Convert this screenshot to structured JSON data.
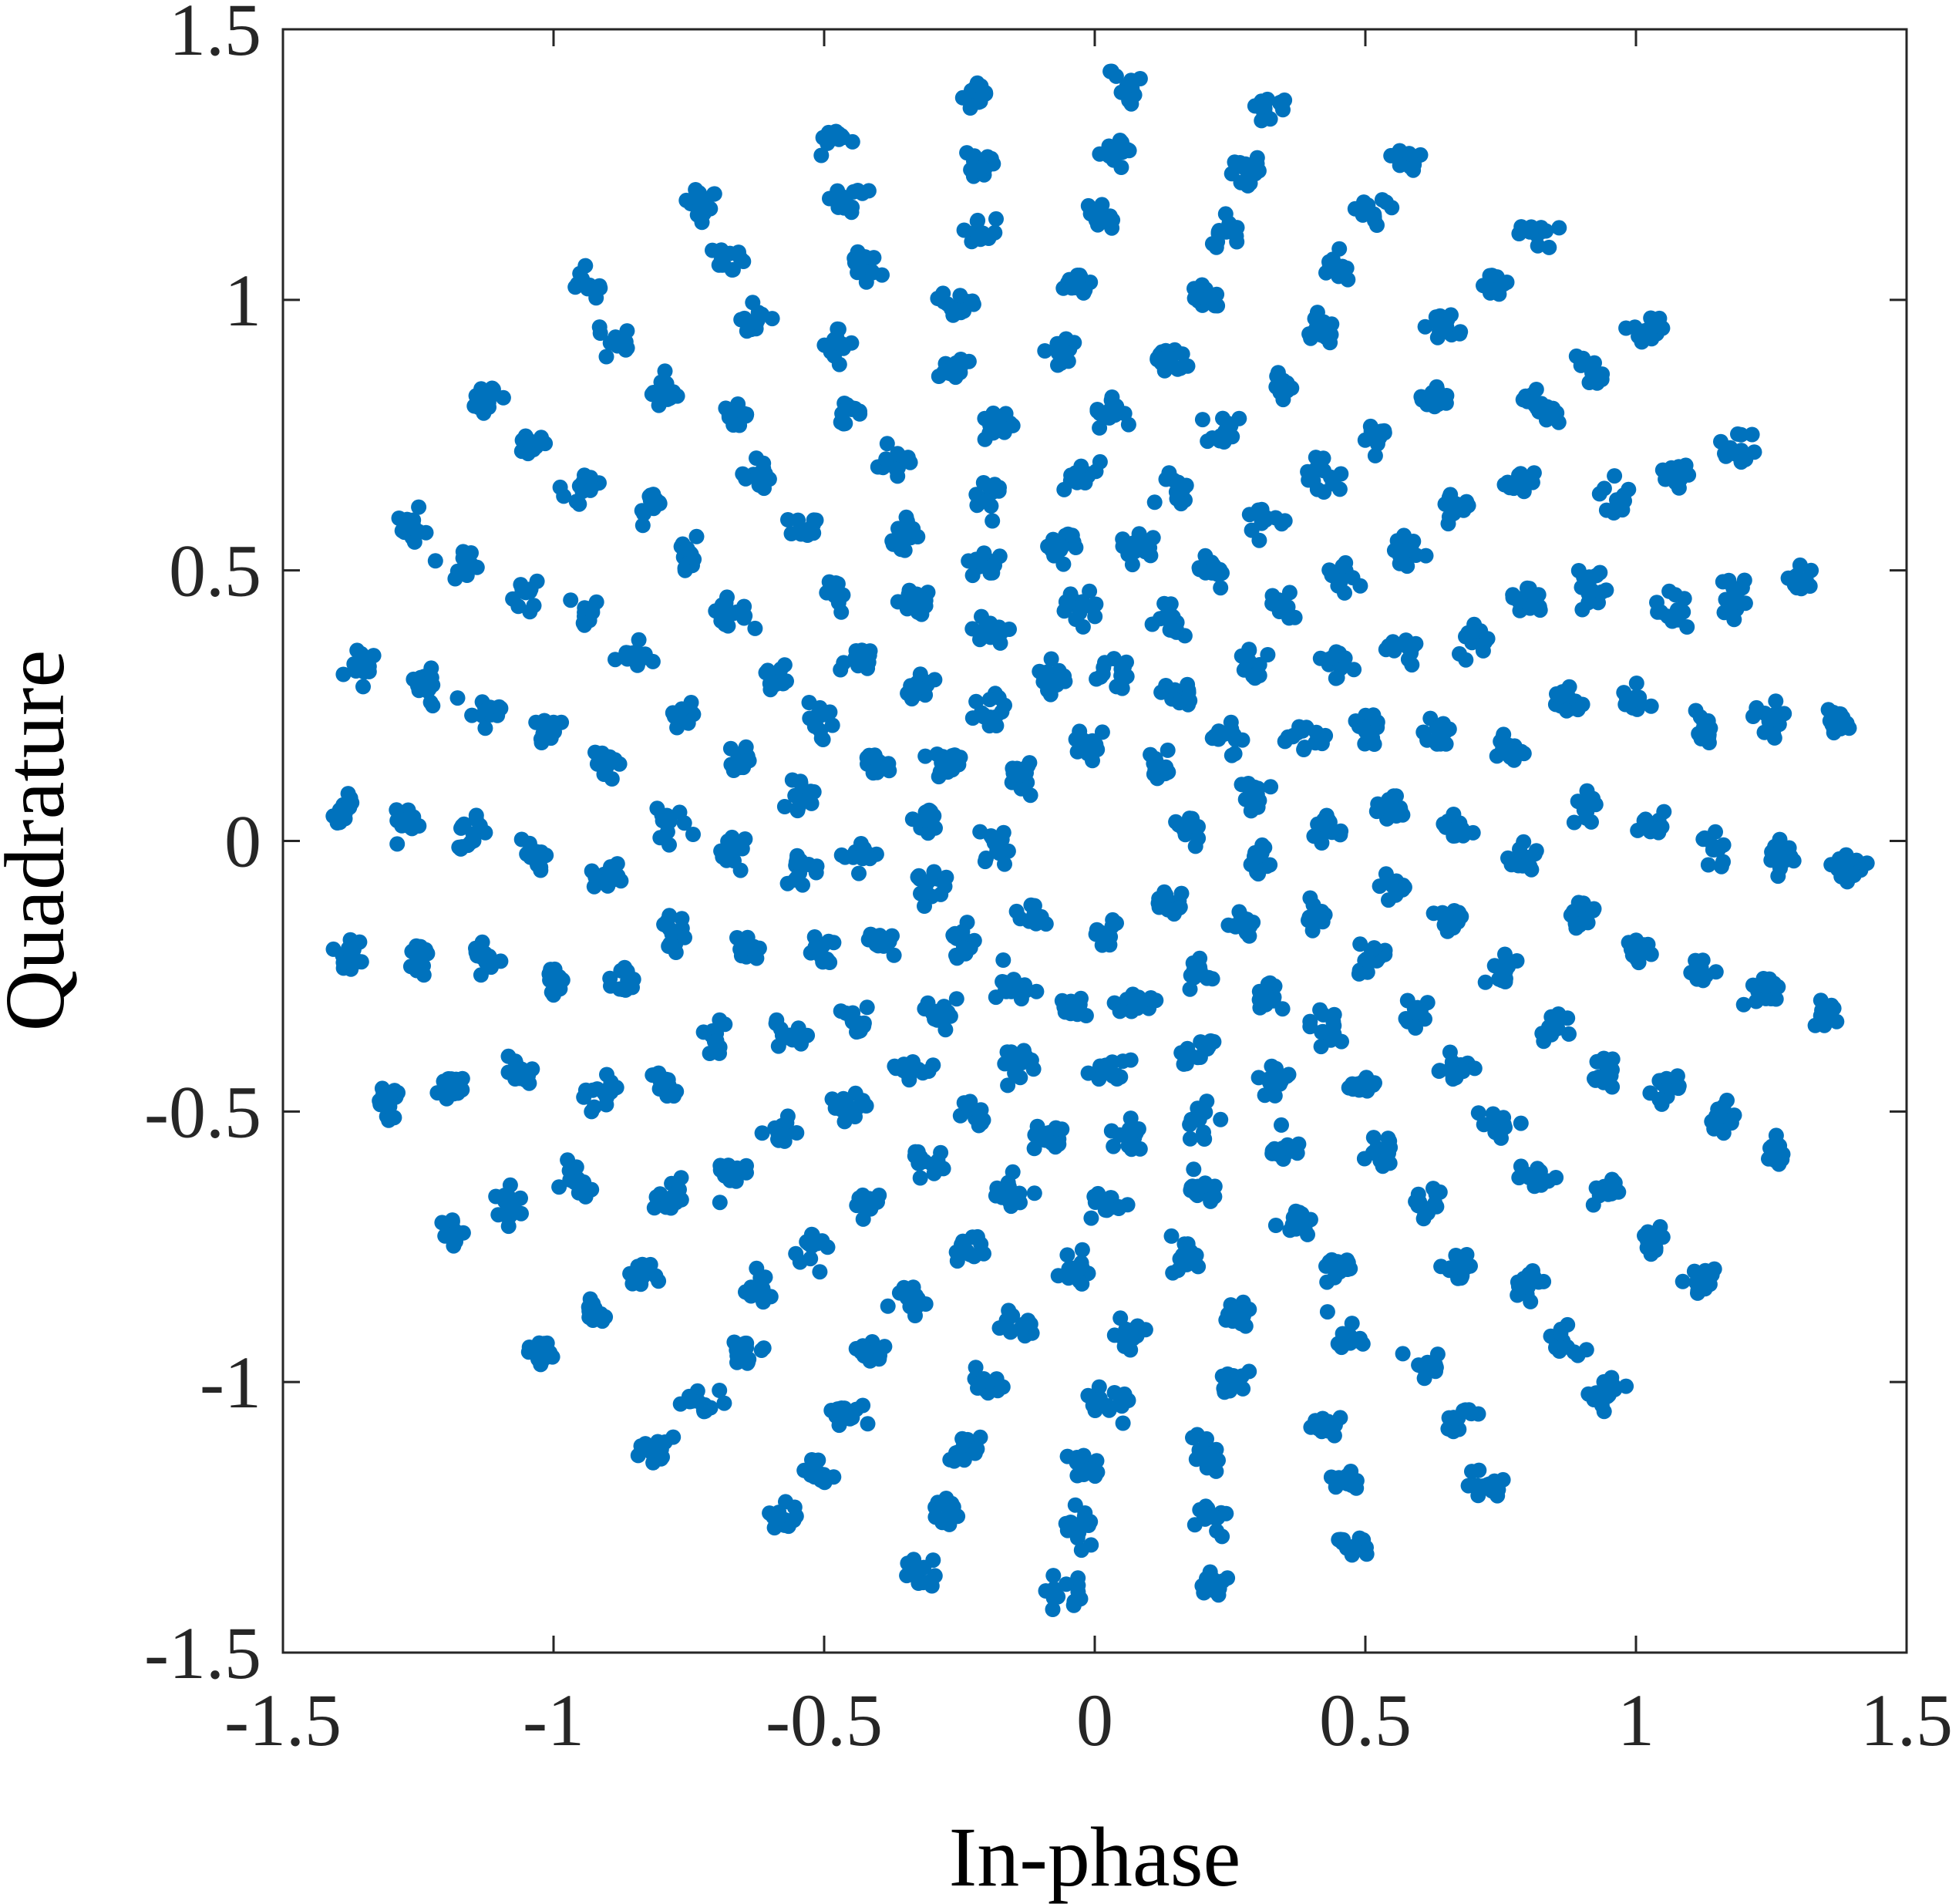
{
  "chart_data": {
    "type": "scatter",
    "title": "",
    "xlabel": "In-phase",
    "ylabel": "Quadrature",
    "xlim": [
      -1.5,
      1.5
    ],
    "ylim": [
      -1.5,
      1.5
    ],
    "xticks": [
      -1.5,
      -1,
      -0.5,
      0,
      0.5,
      1,
      1.5
    ],
    "yticks": [
      -1.5,
      -1,
      -0.5,
      0,
      0.5,
      1,
      1.5
    ],
    "xtick_labels": [
      "-1.5",
      "-1",
      "-0.5",
      "0",
      "0.5",
      "1",
      "1.5"
    ],
    "ytick_labels": [
      "-1.5",
      "-1",
      "-0.5",
      "0",
      "0.5",
      "1",
      "1.5"
    ],
    "grid": false,
    "legend": "none",
    "marker_color": "#0072BD",
    "axis_color": "#262626",
    "series": [
      {
        "rings": [
          {
            "radius": 0.18,
            "points": 8
          },
          {
            "radius": 0.31,
            "points": 16
          },
          {
            "radius": 0.43,
            "points": 16
          },
          {
            "radius": 0.55,
            "points": 24
          },
          {
            "radius": 0.67,
            "points": 24
          },
          {
            "radius": 0.79,
            "points": 24
          },
          {
            "radius": 0.91,
            "points": 28
          },
          {
            "radius": 1.03,
            "points": 28
          },
          {
            "radius": 1.15,
            "points": 32
          },
          {
            "radius": 1.27,
            "points": 32
          },
          {
            "radius": 1.39,
            "points": 32
          }
        ],
        "spiral_twist_per_unit_radius": 0.45,
        "samples_per_point": 14,
        "noise_sigma": 0.018
      }
    ]
  }
}
